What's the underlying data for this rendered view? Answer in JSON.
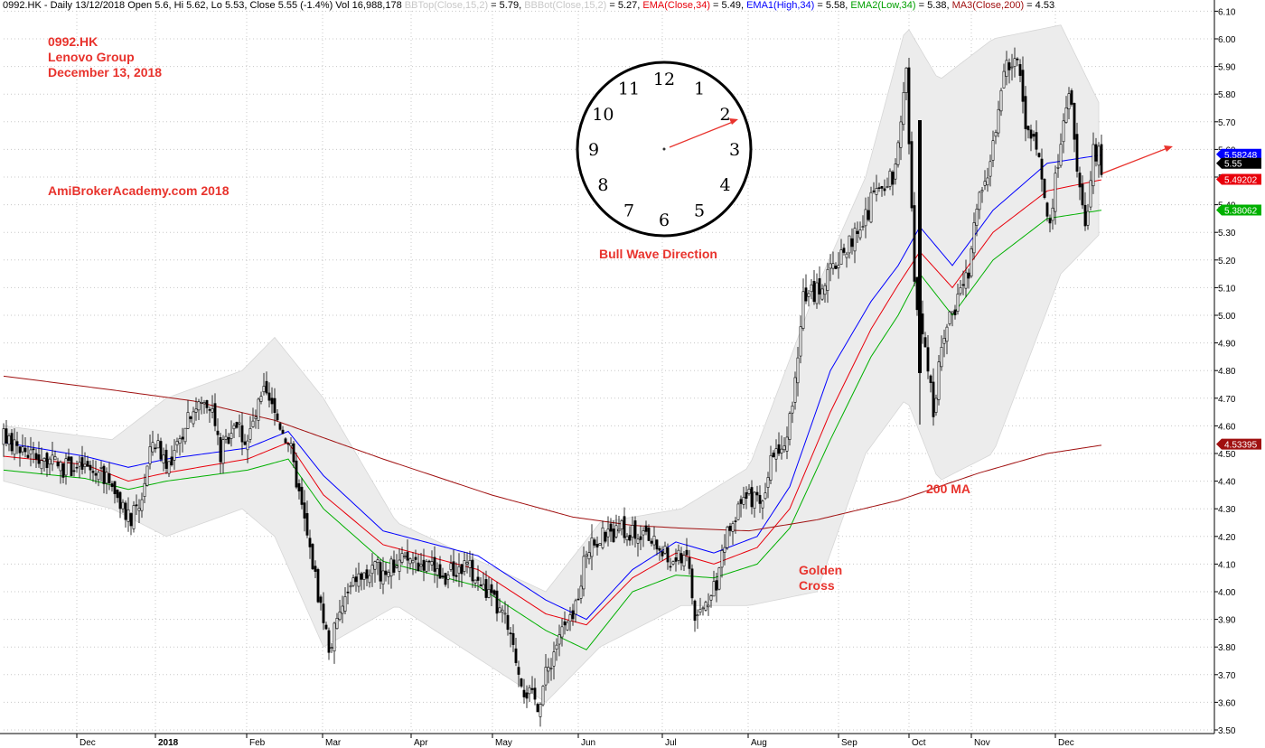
{
  "header": {
    "symbol": "0992.HK",
    "period": "Daily",
    "date": "13/12/2018",
    "open_label": "Open",
    "open": "5.6",
    "hi_label": "Hi",
    "hi": "5.62",
    "lo_label": "Lo",
    "lo": "5.53",
    "close_label": "Close",
    "close": "5.55",
    "close_change": "(-1.4%)",
    "vol_label": "Vol",
    "vol": "16,988,178",
    "bbtop_label": "BBTop(Close,15,2)",
    "bbtop": "5.79",
    "bbbot_label": "BBBot(Close,15,2)",
    "bbbot": "5.27",
    "ema_label": "EMA(Close,34)",
    "ema": "5.49",
    "ema1_label": "EMA1(High,34)",
    "ema1": "5.58",
    "ema2_label": "EMA2(Low,34)",
    "ema2": "5.38",
    "ma3_label": "MA3(Close,200)",
    "ma3": "4.53"
  },
  "annotations": {
    "ticker": "0992.HK",
    "company": "Lenovo Group",
    "date": "December 13, 2018",
    "site": "AmiBrokerAcademy.com  2018",
    "bull_wave": "Bull Wave Direction",
    "ma200": "200 MA",
    "golden_cross_1": "Golden",
    "golden_cross_2": "Cross"
  },
  "clock": {
    "numbers": [
      "12",
      "1",
      "2",
      "3",
      "4",
      "5",
      "6",
      "7",
      "8",
      "9",
      "10",
      "11"
    ]
  },
  "colors": {
    "ema": "#e8000b",
    "ema1": "#0000ff",
    "ema2": "#00b000",
    "ma3": "#a01010",
    "bb_fill": "#ececec",
    "annotation": "#e8332d",
    "grid": "#c8c8c8"
  },
  "chart_data": {
    "type": "candlestick",
    "y_axis": {
      "range": [
        3.49,
        6.11
      ],
      "ticks": [
        "3.50",
        "3.60",
        "3.70",
        "3.80",
        "3.90",
        "4.00",
        "4.10",
        "4.20",
        "4.30",
        "4.40",
        "4.50",
        "4.60",
        "4.70",
        "4.80",
        "4.90",
        "5.00",
        "5.10",
        "5.20",
        "5.30",
        "5.40",
        "5.50",
        "5.60",
        "5.70",
        "5.80",
        "5.90",
        "6.00",
        "6.10"
      ],
      "position": "right"
    },
    "x_axis": {
      "labels": [
        "Dec",
        "2018",
        "Feb",
        "Mar",
        "Apr",
        "May",
        "Jun",
        "Jul",
        "Aug",
        "Sep",
        "Oct",
        "Nov",
        "Dec"
      ]
    },
    "grid": true,
    "value_badges": [
      {
        "label": "5.58248",
        "value": 5.58248,
        "color": "#0000ff"
      },
      {
        "label": "5.55",
        "value": 5.55,
        "color": "#000000"
      },
      {
        "label": "5.49202",
        "value": 5.49202,
        "color": "#e8000b"
      },
      {
        "label": "5.38062",
        "value": 5.38062,
        "color": "#00b000"
      },
      {
        "label": "4.53395",
        "value": 4.53395,
        "color": "#a01010"
      }
    ],
    "price_path": [
      [
        0,
        4.55
      ],
      [
        10,
        4.5
      ],
      [
        22,
        4.45
      ],
      [
        30,
        4.45
      ],
      [
        40,
        4.4
      ],
      [
        45,
        4.25
      ],
      [
        50,
        4.3
      ],
      [
        55,
        4.55
      ],
      [
        62,
        4.45
      ],
      [
        68,
        4.65
      ],
      [
        76,
        4.7
      ],
      [
        80,
        4.5
      ],
      [
        85,
        4.62
      ],
      [
        90,
        4.55
      ],
      [
        96,
        4.72
      ],
      [
        105,
        4.55
      ],
      [
        110,
        4.3
      ],
      [
        116,
        4.0
      ],
      [
        120,
        3.8
      ],
      [
        125,
        3.95
      ],
      [
        130,
        4.05
      ],
      [
        140,
        4.08
      ],
      [
        150,
        4.12
      ],
      [
        155,
        4.1
      ],
      [
        162,
        4.05
      ],
      [
        170,
        4.1
      ],
      [
        178,
        4.0
      ],
      [
        185,
        3.9
      ],
      [
        192,
        3.65
      ],
      [
        197,
        3.6
      ],
      [
        205,
        3.85
      ],
      [
        210,
        3.9
      ],
      [
        215,
        4.15
      ],
      [
        222,
        4.2
      ],
      [
        230,
        4.22
      ],
      [
        240,
        4.18
      ],
      [
        246,
        4.1
      ],
      [
        252,
        4.15
      ],
      [
        255,
        3.9
      ],
      [
        262,
        4.0
      ],
      [
        268,
        4.25
      ],
      [
        275,
        4.35
      ],
      [
        280,
        4.3
      ],
      [
        284,
        4.5
      ],
      [
        290,
        4.6
      ],
      [
        295,
        5.05
      ],
      [
        300,
        5.1
      ],
      [
        305,
        5.15
      ],
      [
        310,
        5.25
      ],
      [
        316,
        5.3
      ],
      [
        322,
        5.45
      ],
      [
        328,
        5.5
      ],
      [
        333,
        5.9
      ],
      [
        336,
        5.1
      ],
      [
        340,
        4.9
      ],
      [
        343,
        4.65
      ],
      [
        347,
        4.95
      ],
      [
        352,
        5.05
      ],
      [
        356,
        5.15
      ],
      [
        360,
        5.45
      ],
      [
        365,
        5.6
      ],
      [
        370,
        5.92
      ],
      [
        374,
        5.9
      ],
      [
        378,
        5.65
      ],
      [
        382,
        5.55
      ],
      [
        386,
        5.3
      ],
      [
        390,
        5.65
      ],
      [
        393,
        5.82
      ],
      [
        396,
        5.55
      ],
      [
        399,
        5.3
      ],
      [
        402,
        5.62
      ],
      [
        405,
        5.55
      ]
    ],
    "series": [
      {
        "name": "EMA(Close,34)",
        "color": "#e8000b",
        "points": [
          [
            0,
            4.49
          ],
          [
            30,
            4.46
          ],
          [
            46,
            4.4
          ],
          [
            60,
            4.43
          ],
          [
            90,
            4.48
          ],
          [
            105,
            4.54
          ],
          [
            118,
            4.35
          ],
          [
            140,
            4.17
          ],
          [
            175,
            4.08
          ],
          [
            200,
            3.92
          ],
          [
            215,
            3.88
          ],
          [
            232,
            4.05
          ],
          [
            248,
            4.14
          ],
          [
            262,
            4.1
          ],
          [
            278,
            4.16
          ],
          [
            290,
            4.3
          ],
          [
            305,
            4.65
          ],
          [
            320,
            4.95
          ],
          [
            330,
            5.11
          ],
          [
            338,
            5.23
          ],
          [
            350,
            5.1
          ],
          [
            365,
            5.3
          ],
          [
            385,
            5.45
          ],
          [
            405,
            5.49
          ]
        ]
      },
      {
        "name": "EMA1(High,34)",
        "color": "#0000ff",
        "points": [
          [
            0,
            4.54
          ],
          [
            30,
            4.49
          ],
          [
            46,
            4.45
          ],
          [
            60,
            4.48
          ],
          [
            90,
            4.52
          ],
          [
            105,
            4.58
          ],
          [
            118,
            4.42
          ],
          [
            140,
            4.22
          ],
          [
            175,
            4.13
          ],
          [
            200,
            3.97
          ],
          [
            215,
            3.9
          ],
          [
            232,
            4.08
          ],
          [
            248,
            4.18
          ],
          [
            262,
            4.14
          ],
          [
            278,
            4.2
          ],
          [
            290,
            4.38
          ],
          [
            305,
            4.8
          ],
          [
            320,
            5.05
          ],
          [
            330,
            5.18
          ],
          [
            338,
            5.32
          ],
          [
            350,
            5.18
          ],
          [
            365,
            5.38
          ],
          [
            385,
            5.55
          ],
          [
            405,
            5.58
          ]
        ]
      },
      {
        "name": "EMA2(Low,34)",
        "color": "#00b000",
        "points": [
          [
            0,
            4.44
          ],
          [
            30,
            4.41
          ],
          [
            46,
            4.37
          ],
          [
            60,
            4.4
          ],
          [
            90,
            4.44
          ],
          [
            105,
            4.48
          ],
          [
            118,
            4.3
          ],
          [
            140,
            4.11
          ],
          [
            175,
            4.02
          ],
          [
            200,
            3.86
          ],
          [
            215,
            3.79
          ],
          [
            232,
            4.0
          ],
          [
            248,
            4.06
          ],
          [
            262,
            4.05
          ],
          [
            278,
            4.1
          ],
          [
            290,
            4.23
          ],
          [
            305,
            4.55
          ],
          [
            320,
            4.85
          ],
          [
            330,
            5.0
          ],
          [
            338,
            5.15
          ],
          [
            350,
            5.0
          ],
          [
            365,
            5.2
          ],
          [
            385,
            5.35
          ],
          [
            405,
            5.38
          ]
        ]
      },
      {
        "name": "MA3(Close,200)",
        "color": "#a01010",
        "points": [
          [
            0,
            4.78
          ],
          [
            40,
            4.73
          ],
          [
            70,
            4.69
          ],
          [
            100,
            4.62
          ],
          [
            140,
            4.48
          ],
          [
            180,
            4.35
          ],
          [
            210,
            4.27
          ],
          [
            232,
            4.24
          ],
          [
            250,
            4.23
          ],
          [
            275,
            4.22
          ],
          [
            300,
            4.26
          ],
          [
            330,
            4.33
          ],
          [
            360,
            4.43
          ],
          [
            385,
            4.5
          ],
          [
            405,
            4.53
          ]
        ]
      }
    ],
    "bollinger": {
      "upper": [
        [
          0,
          4.6
        ],
        [
          40,
          4.55
        ],
        [
          60,
          4.7
        ],
        [
          88,
          4.8
        ],
        [
          100,
          4.92
        ],
        [
          118,
          4.7
        ],
        [
          145,
          4.25
        ],
        [
          200,
          4.0
        ],
        [
          220,
          4.25
        ],
        [
          250,
          4.3
        ],
        [
          275,
          4.45
        ],
        [
          300,
          5.1
        ],
        [
          318,
          5.5
        ],
        [
          333,
          6.05
        ],
        [
          345,
          5.85
        ],
        [
          365,
          6.0
        ],
        [
          390,
          6.05
        ],
        [
          405,
          5.75
        ]
      ],
      "lower": [
        [
          0,
          4.4
        ],
        [
          40,
          4.3
        ],
        [
          60,
          4.2
        ],
        [
          88,
          4.3
        ],
        [
          100,
          4.2
        ],
        [
          118,
          3.8
        ],
        [
          145,
          3.95
        ],
        [
          200,
          3.6
        ],
        [
          220,
          3.8
        ],
        [
          250,
          3.95
        ],
        [
          275,
          3.95
        ],
        [
          300,
          4.0
        ],
        [
          318,
          4.5
        ],
        [
          333,
          4.7
        ],
        [
          345,
          4.4
        ],
        [
          365,
          4.5
        ],
        [
          390,
          5.15
        ],
        [
          405,
          5.3
        ]
      ]
    }
  }
}
